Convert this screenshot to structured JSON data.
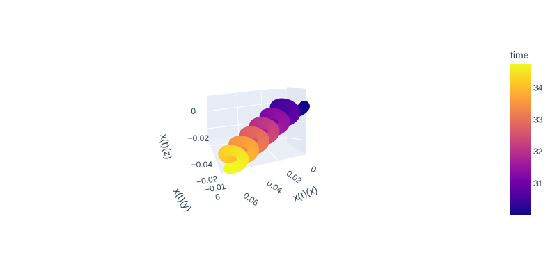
{
  "chart_data": {
    "type": "scatter3d",
    "title": "",
    "axes": {
      "x": {
        "label": "x(t)(x)",
        "ticks": [
          "0",
          "0.02",
          "0.04",
          "0.06"
        ],
        "range": [
          0,
          0.065
        ]
      },
      "y": {
        "label": "x(t)(y)",
        "ticks": [
          "−0.02",
          "−0.01",
          "0"
        ],
        "range": [
          -0.025,
          0.002
        ]
      },
      "z": {
        "label": "x(t)(z)",
        "ticks": [
          "0",
          "−0.02",
          "−0.04"
        ],
        "range": [
          -0.05,
          0.005
        ]
      }
    },
    "colorbar": {
      "title": "time",
      "ticks": [
        "34",
        "33",
        "32",
        "31"
      ],
      "range": [
        30,
        34.75
      ],
      "colorscale": [
        "#0d0887",
        "#46039f",
        "#7201a8",
        "#9c179e",
        "#bd3786",
        "#d8576b",
        "#ed7953",
        "#fb9f3a",
        "#fdca26",
        "#f0f921"
      ]
    },
    "series": {
      "marker_size": 8,
      "t_start": 30,
      "t_end": 34.75,
      "samples": 360
    }
  }
}
